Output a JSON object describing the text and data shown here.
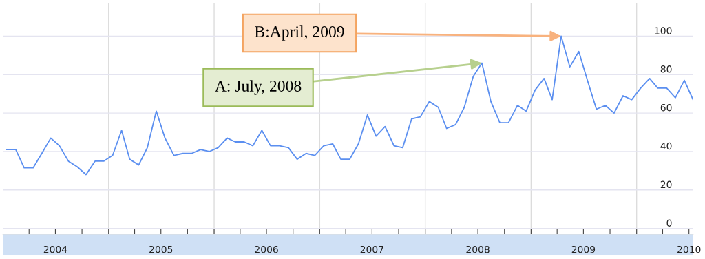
{
  "chart_data": {
    "type": "line",
    "x": [
      "2004-01-15",
      "2004-02-15",
      "2004-03-15",
      "2004-04-15",
      "2004-05-15",
      "2004-06-15",
      "2004-07-15",
      "2004-08-15",
      "2004-09-15",
      "2004-10-15",
      "2004-11-15",
      "2004-12-15",
      "2005-01-15",
      "2005-02-15",
      "2005-03-15",
      "2005-04-15",
      "2005-05-15",
      "2005-06-15",
      "2005-07-15",
      "2005-08-15",
      "2005-09-15",
      "2005-10-15",
      "2005-11-15",
      "2005-12-15",
      "2006-01-15",
      "2006-02-15",
      "2006-03-15",
      "2006-04-15",
      "2006-05-15",
      "2006-06-15",
      "2006-07-15",
      "2006-08-15",
      "2006-09-15",
      "2006-10-15",
      "2006-11-15",
      "2006-12-15",
      "2007-01-15",
      "2007-02-15",
      "2007-03-15",
      "2007-04-15",
      "2007-05-15",
      "2007-06-15",
      "2007-07-15",
      "2007-08-15",
      "2007-09-15",
      "2007-10-15",
      "2007-11-15",
      "2007-12-15",
      "2008-01-15",
      "2008-02-15",
      "2008-03-15",
      "2008-04-15",
      "2008-05-15",
      "2008-06-15",
      "2008-07-15",
      "2008-08-15",
      "2008-09-15",
      "2008-10-15",
      "2008-11-15",
      "2008-12-15",
      "2009-01-15",
      "2009-02-15",
      "2009-03-15",
      "2009-04-15",
      "2009-05-15",
      "2009-06-15",
      "2009-07-15",
      "2009-08-15",
      "2009-09-15",
      "2009-10-15",
      "2009-11-15",
      "2009-12-15",
      "2010-01-15",
      "2010-02-15",
      "2010-03-15",
      "2010-04-15",
      "2010-05-15",
      "2010-06-15",
      "2010-07-15"
    ],
    "series": [
      {
        "color": "#5b8ff0",
        "values": [
          41,
          41,
          31.5,
          31.5,
          39,
          47,
          43,
          35,
          32,
          28,
          35,
          35,
          38,
          51,
          36,
          33,
          42,
          61,
          47,
          38,
          39,
          39,
          41,
          40,
          42,
          47,
          45,
          45,
          43,
          51,
          43,
          43,
          42,
          36,
          39,
          38,
          43,
          44,
          36,
          36,
          44,
          59,
          48,
          53,
          43,
          42,
          57,
          58,
          66,
          63,
          52,
          54,
          63,
          79,
          86,
          66,
          55,
          55,
          64,
          61,
          72,
          78,
          67,
          100,
          84,
          92,
          77,
          62,
          64,
          60,
          69,
          67,
          73,
          78,
          73,
          73,
          68,
          77,
          67
        ]
      }
    ],
    "xlim": [
      "2004-01-01",
      "2010-07-16"
    ],
    "xticks": [
      {
        "value": "2004-04-01",
        "label": null
      },
      {
        "value": "2004-07-01",
        "label": "2004"
      },
      {
        "value": "2004-10-01",
        "label": null
      },
      {
        "value": "2005-01-01",
        "label": null
      },
      {
        "value": "2005-04-01",
        "label": null
      },
      {
        "value": "2005-07-01",
        "label": "2005"
      },
      {
        "value": "2005-10-01",
        "label": null
      },
      {
        "value": "2006-01-01",
        "label": null
      },
      {
        "value": "2006-04-01",
        "label": null
      },
      {
        "value": "2006-07-01",
        "label": "2006"
      },
      {
        "value": "2006-10-01",
        "label": null
      },
      {
        "value": "2007-01-01",
        "label": null
      },
      {
        "value": "2007-04-01",
        "label": null
      },
      {
        "value": "2007-07-01",
        "label": "2007"
      },
      {
        "value": "2007-10-01",
        "label": null
      },
      {
        "value": "2008-01-01",
        "label": null
      },
      {
        "value": "2008-04-01",
        "label": null
      },
      {
        "value": "2008-07-01",
        "label": "2008"
      },
      {
        "value": "2008-10-01",
        "label": null
      },
      {
        "value": "2009-01-01",
        "label": null
      },
      {
        "value": "2009-04-01",
        "label": null
      },
      {
        "value": "2009-07-01",
        "label": "2009"
      },
      {
        "value": "2009-10-01",
        "label": null
      },
      {
        "value": "2010-01-01",
        "label": null
      },
      {
        "value": "2010-04-01",
        "label": null
      },
      {
        "value": "2010-07-01",
        "label": "2010"
      }
    ],
    "ylim": [
      -3,
      117
    ],
    "yticks": [
      0,
      20,
      40,
      60,
      80,
      100
    ],
    "grid": "y",
    "ref_lines": [
      {
        "axis": "x",
        "value": "2005-01-01",
        "label": null,
        "color": "#dcdcdc"
      },
      {
        "axis": "x",
        "value": "2006-01-01",
        "label": null,
        "color": "#dcdcdc"
      },
      {
        "axis": "x",
        "value": "2007-01-01",
        "label": null,
        "color": "#dcdcdc"
      },
      {
        "axis": "x",
        "value": "2008-01-01",
        "label": null,
        "color": "#dcdcdc"
      },
      {
        "axis": "x",
        "value": "2009-01-01",
        "label": null,
        "color": "#dcdcdc"
      },
      {
        "axis": "x",
        "value": "2010-01-01",
        "label": null,
        "color": "#dcdcdc"
      }
    ],
    "annotations": [
      {
        "text": "A: July, 2008",
        "x": "2008-07-15",
        "y": 86
      },
      {
        "text": "B:April, 2009",
        "x": "2009-04-15",
        "y": 100
      }
    ]
  }
}
